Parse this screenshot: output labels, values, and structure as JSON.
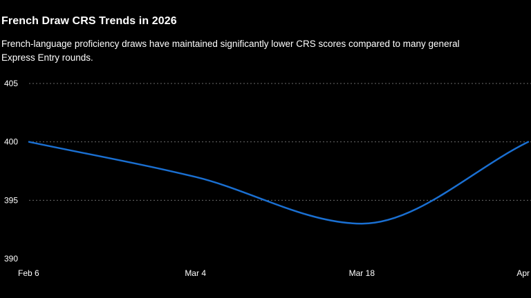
{
  "chart_data": {
    "type": "line",
    "title": "French Draw CRS Trends in 2026",
    "subtitle": "French-language proficiency draws have maintained significantly lower CRS scores compared to many general Express Entry rounds.",
    "xlabel": "",
    "ylabel": "",
    "x": [
      "Feb 6",
      "Mar 4",
      "Mar 18",
      "Apr"
    ],
    "series": [
      {
        "values": [
          400,
          397,
          393,
          400
        ],
        "color": "#1a6fd1"
      }
    ],
    "ylim": [
      390,
      405
    ],
    "yticks": [
      390,
      395,
      400,
      405
    ],
    "grid": true,
    "legend": "none"
  }
}
